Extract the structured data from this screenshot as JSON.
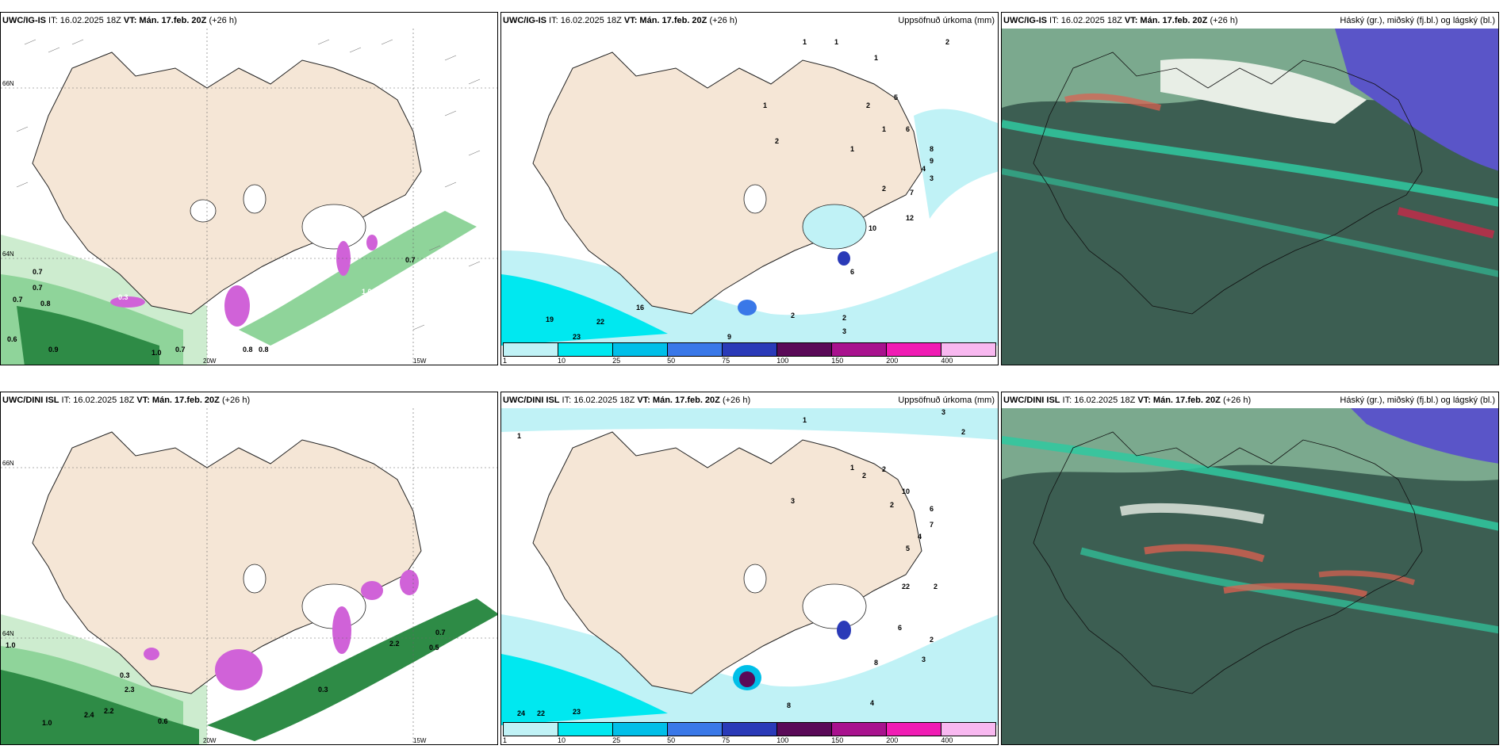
{
  "colors": {
    "land": "#f5e6d6",
    "sea_white": "#ffffff",
    "green_light": "#cdeccf",
    "green_mid": "#8fd49a",
    "green_dark": "#2e8b46",
    "magenta": "#d062d8",
    "precip_1": "#c0f2f6",
    "precip_10": "#00e8f0",
    "cloud_dark": "#3c5e52",
    "cloud_teal": "#2fc9a0",
    "cloud_purple": "#5a55c8"
  },
  "top": {
    "left": {
      "title_model": "UWC/IG-IS",
      "title_it": " IT: 16.02.2025 18Z ",
      "title_vt": "VT: Mán. 17.feb. 20Z",
      "title_lead": " (+26 h)",
      "lon_labels": [
        "20W",
        "15W"
      ],
      "lat_labels": [
        "66N",
        "64N"
      ],
      "values": [
        "0.7",
        "0.7",
        "0.7",
        "0.8",
        "0.6",
        "0.9",
        "1.0",
        "0.7",
        "0.8",
        "0.8",
        "0.3",
        "1.0",
        "0.7"
      ]
    },
    "mid": {
      "title_model": "UWC/IG-IS",
      "title_it": " IT: 16.02.2025 18Z ",
      "title_vt": "VT: Mán. 17.feb. 20Z",
      "title_lead": " (+26 h)",
      "title_right": "Uppsöfnuð úrkoma (mm)",
      "values": [
        "1",
        "1",
        "1",
        "2",
        "1",
        "2",
        "1",
        "1",
        "2",
        "5",
        "6",
        "8",
        "9",
        "4",
        "3",
        "7",
        "12",
        "2",
        "10",
        "6",
        "19",
        "22",
        "23",
        "16",
        "9",
        "2",
        "2",
        "3"
      ]
    },
    "right": {
      "title_model": "UWC/IG-IS",
      "title_it": " IT: 16.02.2025 18Z ",
      "title_vt": "VT: Mán. 17.feb. 20Z",
      "title_lead": " (+26 h)",
      "title_right": "Háský (gr.), miðský (fj.bl.) og lágský (bl.)"
    }
  },
  "bottom": {
    "left": {
      "title_model": "UWC/DINI ISL",
      "title_it": " IT: 16.02.2025 18Z ",
      "title_vt": "VT: Mán. 17.feb. 20Z",
      "title_lead": " (+26 h)",
      "lon_labels": [
        "20W",
        "15W"
      ],
      "lat_labels": [
        "66N",
        "64N"
      ],
      "values": [
        "1.0",
        "2.4",
        "2.2",
        "0.6",
        "2.3",
        "0.3",
        "0.5",
        "0.7",
        "1.0",
        "2.2",
        "0.3"
      ]
    },
    "mid": {
      "title_model": "UWC/DINI ISL",
      "title_it": " IT: 16.02.2025 18Z ",
      "title_vt": "VT: Mán. 17.feb. 20Z",
      "title_lead": " (+26 h)",
      "title_right": "Uppsöfnuð úrkoma (mm)",
      "values": [
        "1",
        "2",
        "1",
        "3",
        "2",
        "1",
        "2",
        "3",
        "10",
        "2",
        "6",
        "7",
        "4",
        "5",
        "22",
        "2",
        "8",
        "6",
        "4",
        "2",
        "3",
        "24",
        "22",
        "23",
        "8"
      ]
    },
    "right": {
      "title_model": "UWC/DINI ISL",
      "title_it": " IT: 16.02.2025 18Z ",
      "title_vt": "VT: Mán. 17.feb. 20Z",
      "title_lead": " (+26 h)",
      "title_right": "Háský (gr.), miðský (fj.bl.) og lágský (bl.)"
    }
  },
  "legend": {
    "ticks": [
      "1",
      "10",
      "25",
      "50",
      "75",
      "100",
      "150",
      "200",
      "400"
    ],
    "swatches": [
      "#c0f2f6",
      "#00e8f0",
      "#00bfe8",
      "#3a78e8",
      "#2a3ab8",
      "#5a0a58",
      "#a8128e",
      "#f01cb4",
      "#f8b8f0"
    ]
  }
}
